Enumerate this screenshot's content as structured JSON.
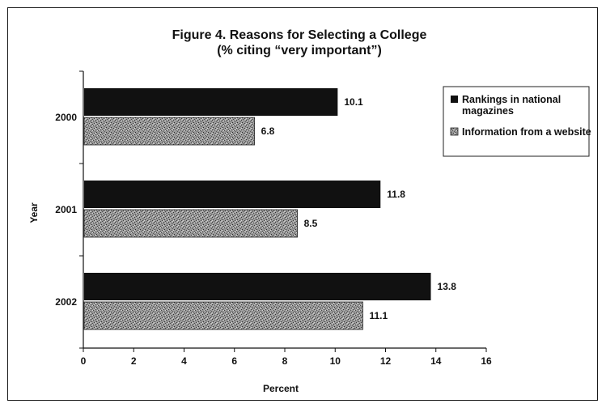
{
  "chart_data": {
    "type": "bar",
    "orientation": "horizontal",
    "title": "Figure 4. Reasons for Selecting a College",
    "subtitle": "(% citing “very important”)",
    "xlabel": "Percent",
    "ylabel": "Year",
    "xlim": [
      0,
      16
    ],
    "xticks": [
      "0",
      "2",
      "4",
      "6",
      "8",
      "10",
      "12",
      "14",
      "16"
    ],
    "categories": [
      "2000",
      "2001",
      "2002"
    ],
    "series": [
      {
        "name": "Rankings in national magazines",
        "values": [
          10.1,
          11.8,
          13.8
        ],
        "value_labels": [
          "10.1",
          "11.8",
          "13.8"
        ],
        "color": "#111111"
      },
      {
        "name": "Information from a website",
        "values": [
          6.8,
          8.5,
          11.1
        ],
        "value_labels": [
          "6.8",
          "8.5",
          "11.1"
        ],
        "color": "#8c8c8c"
      }
    ],
    "legend_position": "right",
    "grid": false
  }
}
